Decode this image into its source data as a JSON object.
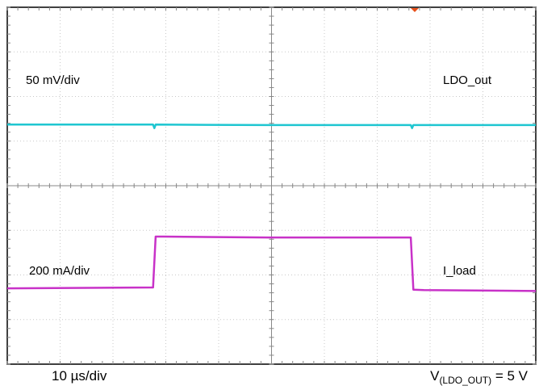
{
  "chart_data": {
    "type": "line",
    "grid": true,
    "timebase": "10 µs/div",
    "divisions": {
      "x": 10,
      "y": 8
    },
    "series": [
      {
        "name": "LDO_out",
        "scale": "50 mV/div",
        "color": "#1fc6d1",
        "x": [
          0,
          5.6,
          5.65,
          5.7,
          10,
          15.5,
          15.55,
          15.6,
          20.3
        ],
        "y": [
          5.37,
          5.37,
          5.29,
          5.37,
          5.36,
          5.36,
          5.29,
          5.36,
          5.36
        ]
      },
      {
        "name": "I_load",
        "scale": "200 mA/div",
        "color": "#c832c8",
        "x": [
          0,
          5.6,
          5.7,
          6.0,
          10,
          15.5,
          15.6,
          16,
          20.3
        ],
        "y": [
          1.7,
          1.72,
          2.86,
          2.86,
          2.84,
          2.84,
          1.67,
          1.66,
          1.64
        ]
      }
    ]
  },
  "labels": {
    "ch1_scale": "50 mV/div",
    "ch1_name": "LDO_out",
    "ch2_scale": "200 mA/div",
    "ch2_name": "I_load",
    "timebase": "10 µs/div",
    "condition_v": "V",
    "condition_sub": "(LDO_OUT)",
    "condition_rest": " = 5 V"
  }
}
